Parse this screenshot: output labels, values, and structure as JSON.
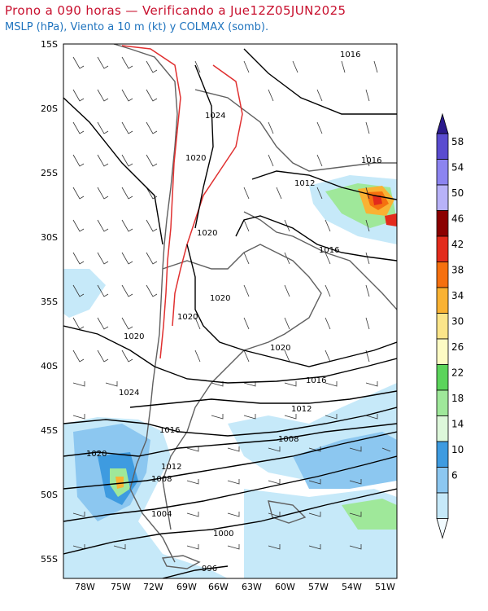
{
  "title": "Prono a 090 horas — Verificando a Jue12Z05JUN2025",
  "subtitle": "MSLP (hPa), Viento a 10 m (kt) y COLMAX (somb).",
  "map": {
    "lat_labels": [
      "15S",
      "20S",
      "25S",
      "30S",
      "35S",
      "40S",
      "45S",
      "50S",
      "55S"
    ],
    "lon_labels": [
      "78W",
      "75W",
      "72W",
      "69W",
      "66W",
      "63W",
      "60W",
      "57W",
      "54W",
      "51W"
    ],
    "isobars": [
      "1016",
      "1024",
      "1020",
      "1016",
      "1012",
      "1020",
      "1016",
      "1020",
      "1020",
      "1020",
      "1020",
      "1016",
      "1012",
      "1024",
      "1008",
      "1016",
      "1020",
      "1012",
      "1008",
      "1004",
      "1000",
      "996"
    ]
  },
  "colorbar": {
    "labels": [
      "58",
      "54",
      "50",
      "46",
      "42",
      "38",
      "34",
      "30",
      "26",
      "22",
      "18",
      "14",
      "10",
      "6"
    ],
    "colors": [
      "#2b1a8c",
      "#5a4cd0",
      "#8c84f0",
      "#b8b2f8",
      "#8b0000",
      "#e32b1c",
      "#f5700f",
      "#f9b233",
      "#fbe58a",
      "#fdfbc4",
      "#5bd45b",
      "#9fe89a",
      "#ddf7da",
      "#3e9be0",
      "#8cc7f0",
      "#c6e9f9",
      "#f2fbff"
    ]
  },
  "colors": {
    "title": "#c8102e",
    "subtitle": "#1e73be",
    "coast": "#606060",
    "isobar": "#000000",
    "terrain": "#e03030"
  }
}
